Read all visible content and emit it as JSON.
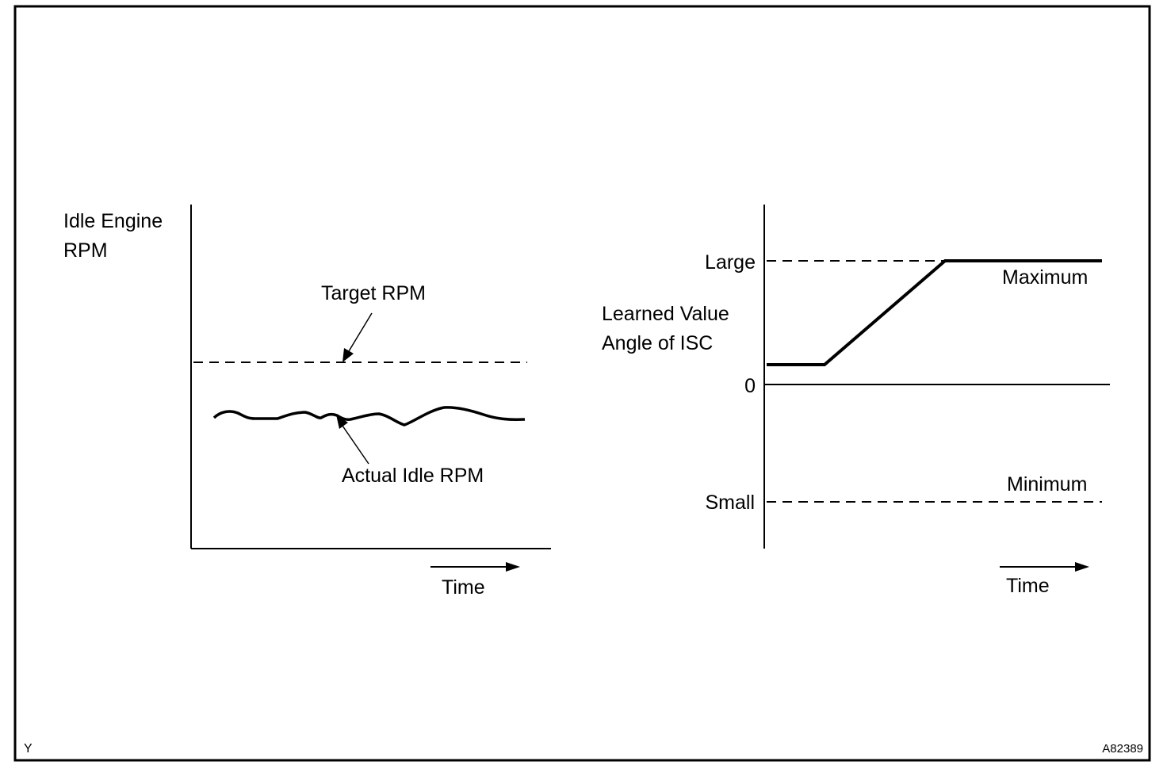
{
  "left_chart": {
    "ylabel_line1": "Idle Engine",
    "ylabel_line2": "RPM",
    "target_label": "Target RPM",
    "actual_label": "Actual Idle RPM",
    "xlabel": "Time"
  },
  "right_chart": {
    "ylabel_line1": "Learned Value",
    "ylabel_line2": "Angle of ISC",
    "tick_large": "Large",
    "tick_zero": "0",
    "tick_small": "Small",
    "max_label": "Maximum",
    "min_label": "Minimum",
    "xlabel": "Time"
  },
  "footer": {
    "left_code": "Y",
    "figure_id": "A82389"
  },
  "colors": {
    "ink": "#000000",
    "background": "#ffffff"
  }
}
